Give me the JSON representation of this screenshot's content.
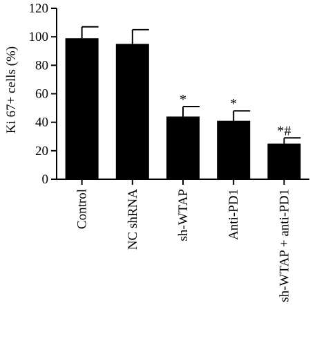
{
  "chart_data": {
    "type": "bar",
    "ylabel": "Ki 67+ cells (%)",
    "xlabel": "",
    "ylim": [
      0,
      120
    ],
    "yticks": [
      0,
      20,
      40,
      60,
      80,
      100,
      120
    ],
    "categories": [
      "Control",
      "NC shRNA",
      "sh-WTAP",
      "Anti-PD1",
      "sh-WTAP + anti-PD1"
    ],
    "values": [
      99,
      95,
      44,
      41,
      25
    ],
    "errors": [
      8,
      10,
      7,
      7,
      4
    ],
    "annotations": [
      "",
      "",
      "*",
      "*",
      "*#"
    ],
    "bar_color": "#000000",
    "grid": false,
    "legend": "none"
  }
}
